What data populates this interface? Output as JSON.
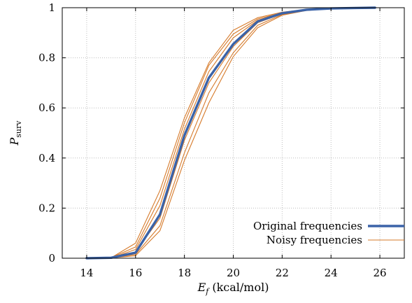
{
  "chart_data": {
    "type": "line",
    "xlabel": {
      "symbol": "E",
      "sub": "f",
      "unit": "(kcal/mol)"
    },
    "ylabel": {
      "symbol": "P",
      "sub": "surv"
    },
    "xlim": [
      13,
      27
    ],
    "ylim": [
      0,
      1
    ],
    "xticks": [
      14,
      16,
      18,
      20,
      22,
      24,
      26
    ],
    "yticks": [
      0,
      0.2,
      0.4,
      0.6,
      0.8,
      1
    ],
    "ytick_labels": [
      "0",
      "0.2",
      "0.4",
      "0.6",
      "0.8",
      "1"
    ],
    "grid": true,
    "legend_position": "bottom-right",
    "x": [
      14,
      15,
      16,
      17,
      18,
      19,
      20,
      21,
      22,
      23,
      24,
      25,
      25.8
    ],
    "series": [
      {
        "name": "Original frequencies",
        "color": "#3b63a8",
        "role": "original",
        "values": [
          0.0,
          0.002,
          0.022,
          0.175,
          0.49,
          0.72,
          0.855,
          0.945,
          0.978,
          0.992,
          0.997,
          0.999,
          1.0
        ]
      }
    ],
    "noisy_series": {
      "name": "Noisy frequencies",
      "color": "#d67a2a",
      "runs": [
        [
          0.0,
          0.002,
          0.06,
          0.27,
          0.56,
          0.78,
          0.91,
          0.96,
          0.982,
          0.993,
          0.997,
          0.999,
          1.0
        ],
        [
          0.0,
          0.002,
          0.045,
          0.24,
          0.54,
          0.77,
          0.895,
          0.955,
          0.98,
          0.992,
          0.997,
          0.999,
          1.0
        ],
        [
          0.0,
          0.001,
          0.035,
          0.21,
          0.515,
          0.745,
          0.88,
          0.95,
          0.979,
          0.992,
          0.997,
          0.999,
          1.0
        ],
        [
          0.0,
          0.001,
          0.025,
          0.16,
          0.47,
          0.7,
          0.845,
          0.94,
          0.976,
          0.991,
          0.996,
          0.999,
          1.0
        ],
        [
          0.0,
          0.001,
          0.015,
          0.13,
          0.42,
          0.66,
          0.82,
          0.93,
          0.973,
          0.99,
          0.996,
          0.999,
          1.0
        ],
        [
          0.0,
          0.001,
          0.01,
          0.11,
          0.39,
          0.62,
          0.805,
          0.92,
          0.97,
          0.989,
          0.996,
          0.999,
          1.0
        ]
      ]
    }
  }
}
